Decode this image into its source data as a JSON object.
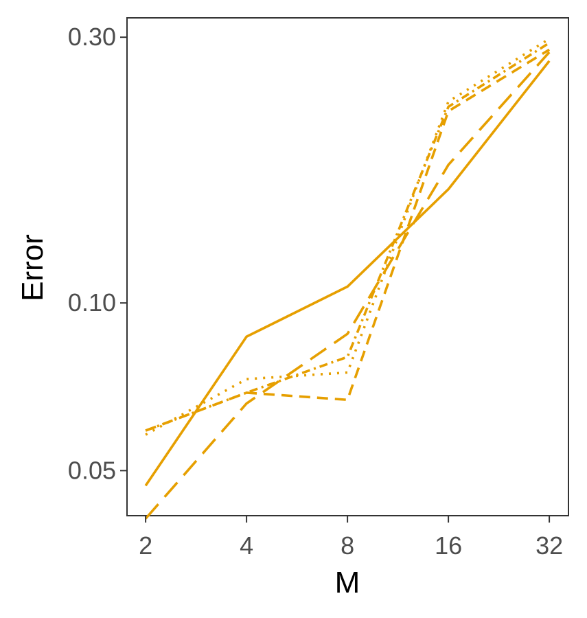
{
  "chart_data": {
    "type": "line",
    "xlabel": "M",
    "ylabel": "Error",
    "x_scale": "log2",
    "y_scale": "log",
    "categories": [
      "2",
      "4",
      "8",
      "16",
      "32"
    ],
    "x": [
      2,
      4,
      8,
      16,
      32
    ],
    "xlim": [
      1.76,
      36.5
    ],
    "ylim": [
      0.0415,
      0.325
    ],
    "y_ticks": [
      0.05,
      0.1,
      0.3
    ],
    "y_tick_labels": [
      "0.05",
      "0.10",
      "0.30"
    ],
    "grid": false,
    "legend": "none",
    "line_color": "#E69F00",
    "series": [
      {
        "linetype": "solid",
        "values": [
          0.047,
          0.087,
          0.107,
          0.16,
          0.272
        ]
      },
      {
        "linetype": "longdash",
        "values": [
          0.041,
          0.066,
          0.088,
          0.177,
          0.282
        ]
      },
      {
        "linetype": "dashed",
        "values": [
          0.059,
          0.069,
          0.067,
          0.221,
          0.285
        ]
      },
      {
        "linetype": "dotted",
        "values": [
          0.058,
          0.073,
          0.075,
          0.23,
          0.298
        ]
      },
      {
        "linetype": "twodash",
        "values": [
          0.059,
          0.069,
          0.08,
          0.225,
          0.293
        ]
      }
    ]
  }
}
